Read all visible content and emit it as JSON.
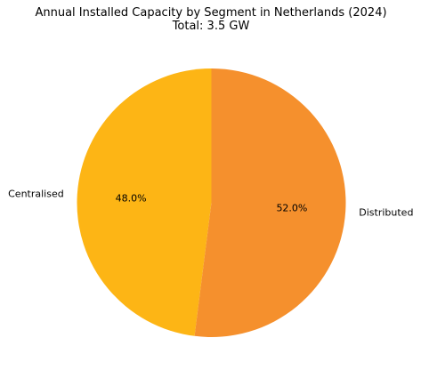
{
  "chart_data": {
    "type": "pie",
    "title": "Annual Installed Capacity by Segment in Netherlands (2024)",
    "subtitle": "Total: 3.5 GW",
    "categories": [
      "Centralised",
      "Distributed"
    ],
    "values": [
      48.0,
      52.0
    ],
    "value_labels": [
      "48.0%",
      "52.0%"
    ],
    "colors": [
      "#FDB515",
      "#F5902D"
    ],
    "start_angle_deg": 90,
    "direction": "counterclockwise"
  }
}
